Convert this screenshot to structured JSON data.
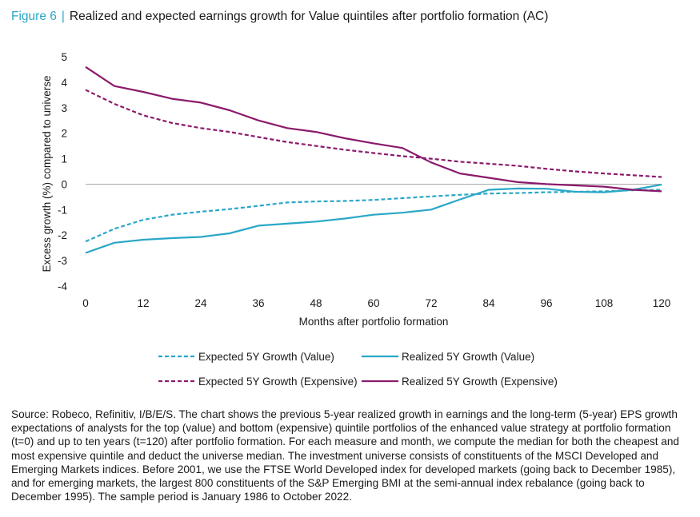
{
  "figure": {
    "label": "Figure  6",
    "separator": "|",
    "title": "Realized and expected earnings growth for Value quintiles after portfolio formation (AC)"
  },
  "source_note": "Source: Robeco, Refinitiv, I/B/E/S. The chart shows the previous 5-year realized growth in earnings and the long-term (5-year) EPS growth expectations of analysts for the top (value) and bottom (expensive) quintile portfolios of the enhanced value strategy at portfolio formation (t=0) and up to ten years (t=120) after portfolio formation. For each measure and month, we compute the median for both the cheapest and most expensive quintile and deduct the universe median. The investment universe consists of constituents of the MSCI Developed and Emerging Markets indices. Before 2001, we use the FTSE World Developed index for developed markets (going back to December 1985), and for emerging markets, the largest 800 constituents of the S&P Emerging BMI at the semi-annual index rebalance (going back to December 1995). The sample period is January 1986 to October 2022.",
  "chart_data": {
    "type": "line",
    "xlabel": "Months after portfolio formation",
    "ylabel": "Excess growth (%) compared to universe",
    "xlim": [
      0,
      120
    ],
    "ylim": [
      -4,
      5
    ],
    "xticks": [
      "0",
      "12",
      "24",
      "36",
      "48",
      "60",
      "72",
      "84",
      "96",
      "108",
      "120"
    ],
    "yticks": [
      "5",
      "4",
      "3",
      "2",
      "1",
      "0",
      "-1",
      "-2",
      "-3",
      "-4"
    ],
    "grid": false,
    "legend_position": "bottom",
    "x": [
      0,
      6,
      12,
      18,
      24,
      30,
      36,
      42,
      48,
      54,
      60,
      66,
      72,
      78,
      84,
      90,
      96,
      102,
      108,
      114,
      120
    ],
    "series": [
      {
        "name": "Expected 5Y Growth (Value)",
        "color": "#2aa7c7",
        "style": "dashed",
        "values": [
          -2.25,
          -1.75,
          -1.4,
          -1.2,
          -1.08,
          -0.98,
          -0.85,
          -0.72,
          -0.68,
          -0.66,
          -0.62,
          -0.55,
          -0.48,
          -0.42,
          -0.37,
          -0.35,
          -0.32,
          -0.3,
          -0.28,
          -0.24,
          -0.22
        ]
      },
      {
        "name": "Realized 5Y Growth (Value)",
        "color": "#2aa7c7",
        "style": "solid",
        "values": [
          -2.7,
          -2.3,
          -2.18,
          -2.12,
          -2.07,
          -1.93,
          -1.63,
          -1.55,
          -1.47,
          -1.35,
          -1.2,
          -1.12,
          -1.0,
          -0.6,
          -0.22,
          -0.17,
          -0.18,
          -0.3,
          -0.32,
          -0.22,
          -0.02
        ]
      },
      {
        "name": "Expected 5Y Growth (Expensive)",
        "color": "#8b1a6b",
        "style": "dashed",
        "values": [
          3.7,
          3.15,
          2.7,
          2.4,
          2.2,
          2.05,
          1.85,
          1.65,
          1.5,
          1.35,
          1.22,
          1.1,
          1.0,
          0.88,
          0.8,
          0.72,
          0.6,
          0.5,
          0.42,
          0.35,
          0.28
        ]
      },
      {
        "name": "Realized 5Y Growth (Expensive)",
        "color": "#8b1a6b",
        "style": "solid",
        "values": [
          4.6,
          3.85,
          3.62,
          3.35,
          3.2,
          2.9,
          2.5,
          2.2,
          2.05,
          1.8,
          1.6,
          1.42,
          0.85,
          0.42,
          0.25,
          0.08,
          0.0,
          -0.05,
          -0.1,
          -0.22,
          -0.28
        ]
      }
    ]
  }
}
